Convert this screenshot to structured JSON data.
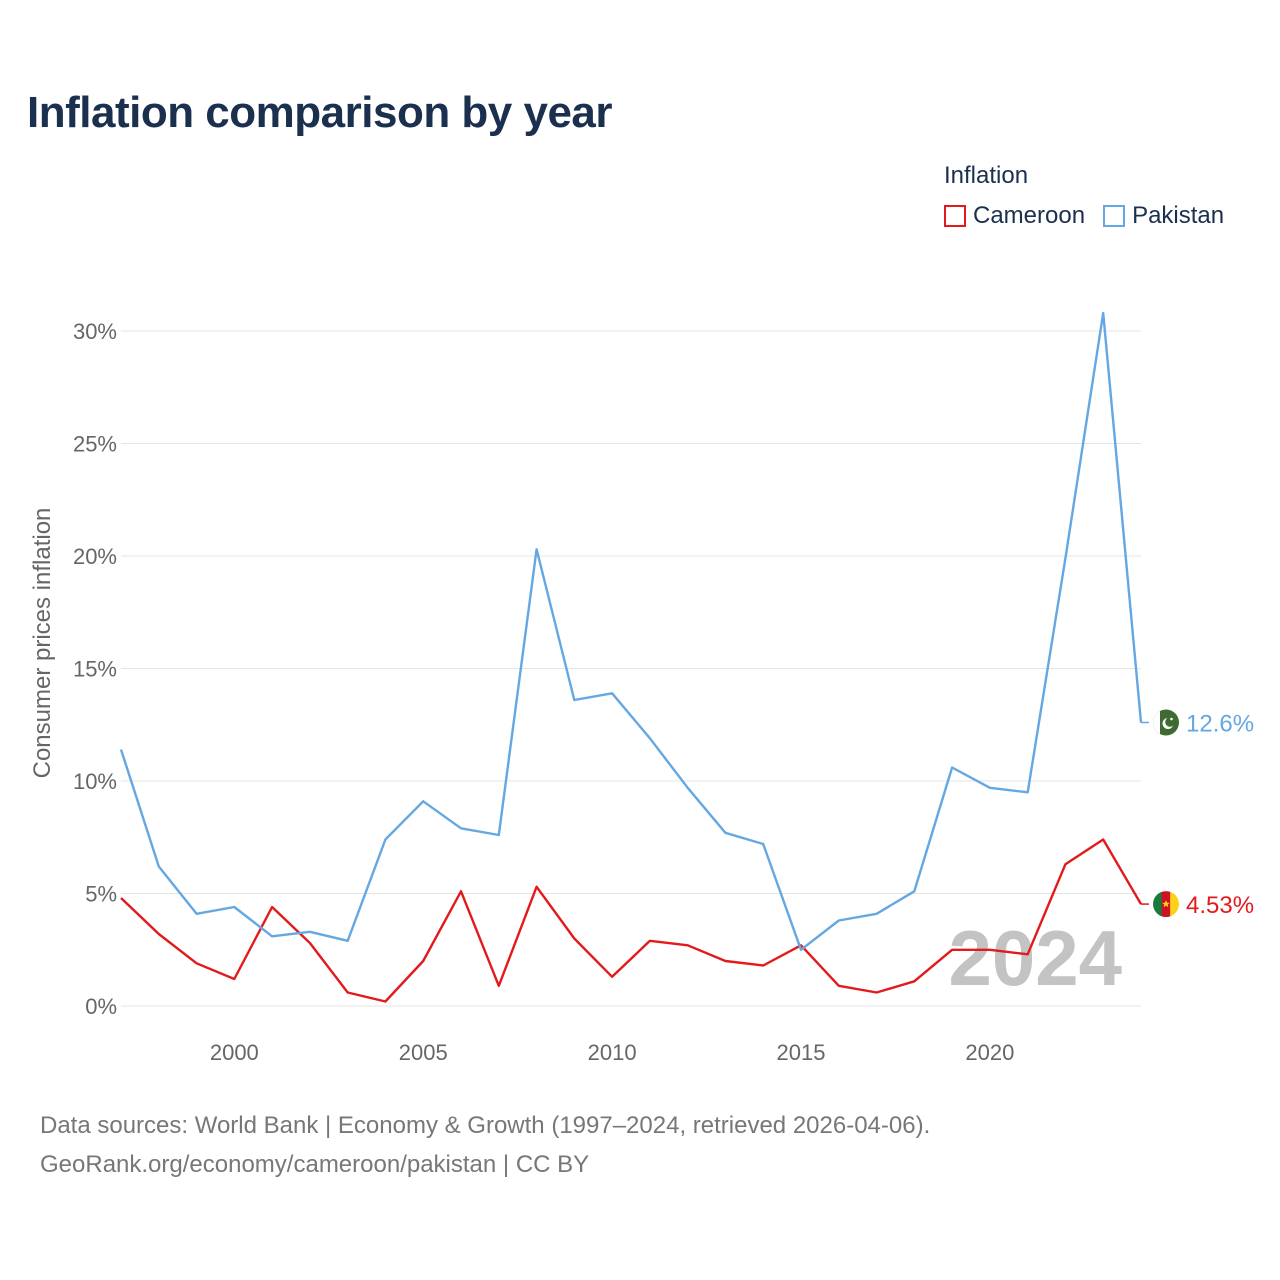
{
  "chart_data": {
    "type": "line",
    "title": "Inflation comparison by year",
    "legend_title": "Inflation",
    "ylabel": "Consumer prices inflation",
    "xlabel": "",
    "x": [
      1997,
      1998,
      1999,
      2000,
      2001,
      2002,
      2003,
      2004,
      2005,
      2006,
      2007,
      2008,
      2009,
      2010,
      2011,
      2012,
      2013,
      2014,
      2015,
      2016,
      2017,
      2018,
      2019,
      2020,
      2021,
      2022,
      2023,
      2024
    ],
    "xlim": [
      1997,
      2024
    ],
    "ylim": [
      0,
      30
    ],
    "x_ticks": [
      2000,
      2005,
      2010,
      2015,
      2020
    ],
    "x_tick_labels": [
      "2000",
      "2005",
      "2010",
      "2015",
      "2020"
    ],
    "y_ticks": [
      0,
      5,
      10,
      15,
      20,
      25,
      30
    ],
    "y_tick_labels": [
      "0%",
      "5%",
      "10%",
      "15%",
      "20%",
      "25%",
      "30%"
    ],
    "grid": true,
    "legend_position": "top-right",
    "year_watermark": "2024",
    "series": [
      {
        "name": "Cameroon",
        "color": "#e31a1c",
        "end_label": "4.53%",
        "flag_icon": "cameroon-flag-icon",
        "values": [
          4.8,
          3.2,
          1.9,
          1.2,
          4.4,
          2.8,
          0.6,
          0.2,
          2.0,
          5.1,
          0.9,
          5.3,
          3.0,
          1.3,
          2.9,
          2.7,
          2.0,
          1.8,
          2.7,
          0.9,
          0.6,
          1.1,
          2.5,
          2.5,
          2.3,
          6.3,
          7.4,
          4.53
        ]
      },
      {
        "name": "Pakistan",
        "color": "#64a7e2",
        "end_label": "12.6%",
        "flag_icon": "pakistan-flag-icon",
        "values": [
          11.4,
          6.2,
          4.1,
          4.4,
          3.1,
          3.3,
          2.9,
          7.4,
          9.1,
          7.9,
          7.6,
          20.3,
          13.6,
          13.9,
          11.9,
          9.7,
          7.7,
          7.2,
          2.5,
          3.8,
          4.1,
          5.1,
          10.6,
          9.7,
          9.5,
          19.9,
          30.8,
          12.6
        ]
      }
    ]
  },
  "footer": {
    "line1": "Data sources: World Bank | Economy & Growth (1997–2024, retrieved 2026-04-06).",
    "line2": "GeoRank.org/economy/cameroon/pakistan | CC BY"
  }
}
